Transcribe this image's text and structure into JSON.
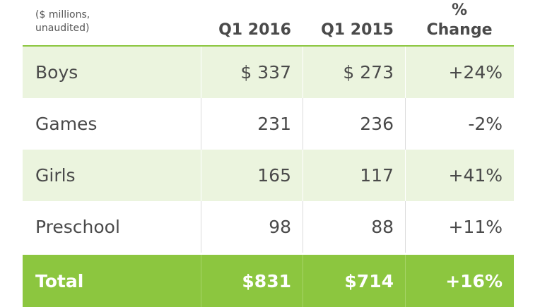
{
  "header": {
    "unit_line1": "($ millions,",
    "unit_line2": "unaudited)",
    "col1": "Q1 2016",
    "col2": "Q1 2015",
    "col3_line1": "%",
    "col3_line2": "Change"
  },
  "rows": [
    {
      "label": "Boys",
      "q1_2016": "$ 337",
      "q1_2015": "$ 273",
      "change": "+24%"
    },
    {
      "label": "Games",
      "q1_2016": "231",
      "q1_2015": "236",
      "change": "-2%"
    },
    {
      "label": "Girls",
      "q1_2016": "165",
      "q1_2015": "117",
      "change": "+41%"
    },
    {
      "label": "Preschool",
      "q1_2016": "98",
      "q1_2015": "88",
      "change": "+11%"
    }
  ],
  "total": {
    "label": "Total",
    "q1_2016": "$831",
    "q1_2015": "$714",
    "change": "+16%"
  },
  "colors": {
    "accent": "#8cc63f",
    "shade": "#ebf4de",
    "text": "#4a4a4a"
  }
}
